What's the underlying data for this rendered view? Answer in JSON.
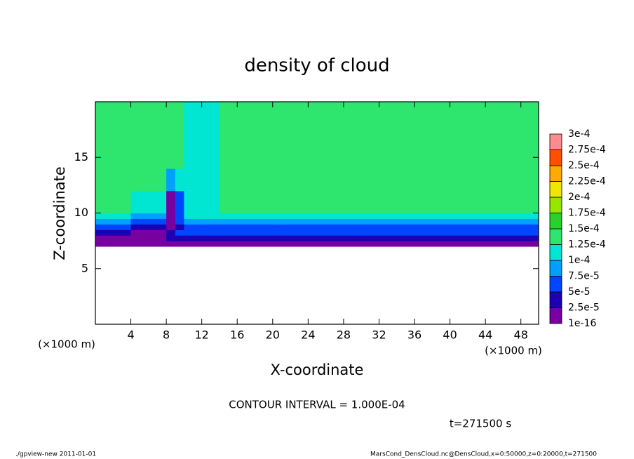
{
  "chart_data": {
    "type": "contour",
    "title": "density of cloud",
    "xlabel": "X-coordinate",
    "ylabel": "Z-coordinate",
    "x_unit": "(×1000 m)",
    "y_unit": "(×1000 m)",
    "contour_note": "CONTOUR INTERVAL = 1.000E-04",
    "time_label": "t=271500 s",
    "footer_left": "./gpview-new  2011-01-01",
    "footer_right": "MarsCond_DensCloud.nc@DensCloud,x=0:50000,z=0:20000,t=271500",
    "xlim": [
      0,
      50
    ],
    "ylim": [
      0,
      20
    ],
    "xticks": [
      4,
      8,
      12,
      16,
      20,
      24,
      28,
      32,
      36,
      40,
      44,
      48
    ],
    "yticks": [
      5,
      10,
      15
    ],
    "field": {
      "x_edges": [
        0,
        4,
        8,
        9,
        10,
        12,
        14,
        20,
        30,
        40,
        50
      ],
      "z_edges": [
        0,
        7,
        7.5,
        8,
        8.5,
        9,
        9.5,
        10,
        12,
        14,
        16,
        18,
        20
      ],
      "values": [
        [
          null,
          null,
          null,
          null,
          null,
          null,
          null,
          null,
          null,
          null
        ],
        [
          1e-05,
          1e-05,
          1e-05,
          1e-05,
          1e-05,
          1e-05,
          1e-05,
          1e-05,
          1e-05,
          1e-05
        ],
        [
          1e-05,
          1e-05,
          3e-05,
          3e-05,
          3e-05,
          3e-05,
          3e-05,
          3e-05,
          3e-05,
          3e-05
        ],
        [
          4e-05,
          1e-05,
          3e-05,
          5.5e-05,
          5.5e-05,
          5.5e-05,
          5.5e-05,
          5.5e-05,
          5.5e-05,
          5.5e-05
        ],
        [
          6e-05,
          3e-05,
          2e-05,
          4e-05,
          7e-05,
          7e-05,
          7e-05,
          7e-05,
          7e-05,
          7e-05
        ],
        [
          9e-05,
          6e-05,
          1e-05,
          5e-05,
          9e-05,
          9e-05,
          9e-05,
          9e-05,
          9e-05,
          9e-05
        ],
        [
          0.00011,
          9e-05,
          1e-05,
          7e-05,
          0.00011,
          0.00011,
          0.00011,
          0.00011,
          0.00011,
          0.00011
        ],
        [
          0.000135,
          0.00011,
          2e-05,
          6e-05,
          0.00011,
          0.00012,
          0.000135,
          0.000135,
          0.000135,
          0.000135
        ],
        [
          0.000135,
          0.00013,
          9e-05,
          0.00011,
          0.00011,
          0.000115,
          0.000135,
          0.000135,
          0.000135,
          0.000135
        ],
        [
          0.000135,
          0.000135,
          0.000135,
          0.00013,
          0.00011,
          0.00012,
          0.000135,
          0.000135,
          0.000135,
          0.000135
        ],
        [
          0.000135,
          0.000135,
          0.000135,
          0.00013,
          0.00011,
          0.000115,
          0.000135,
          0.000135,
          0.000135,
          0.000135
        ],
        [
          0.000135,
          0.000135,
          0.000135,
          0.00013,
          0.000105,
          0.00012,
          0.000135,
          0.000135,
          0.000135,
          0.000135
        ]
      ]
    },
    "colorbar": {
      "levels": [
        {
          "value": 1e-16,
          "label": "1e-16"
        },
        {
          "value": 2.5e-05,
          "label": "2.5e-5"
        },
        {
          "value": 5e-05,
          "label": "5e-5"
        },
        {
          "value": 7.5e-05,
          "label": "7.5e-5"
        },
        {
          "value": 0.0001,
          "label": "1e-4"
        },
        {
          "value": 0.000125,
          "label": "1.25e-4"
        },
        {
          "value": 0.00015,
          "label": "1.5e-4"
        },
        {
          "value": 0.000175,
          "label": "1.75e-4"
        },
        {
          "value": 0.0002,
          "label": "2e-4"
        },
        {
          "value": 0.000225,
          "label": "2.25e-4"
        },
        {
          "value": 0.00025,
          "label": "2.5e-4"
        },
        {
          "value": 0.000275,
          "label": "2.75e-4"
        },
        {
          "value": 0.0003,
          "label": "3e-4"
        }
      ],
      "colors": [
        "#7800a0",
        "#1e00b4",
        "#0046ff",
        "#00a0ff",
        "#00e6d2",
        "#2ee66e",
        "#28d228",
        "#96e600",
        "#f0e600",
        "#ffaa00",
        "#ff5000",
        "#ff8c8c"
      ]
    }
  }
}
